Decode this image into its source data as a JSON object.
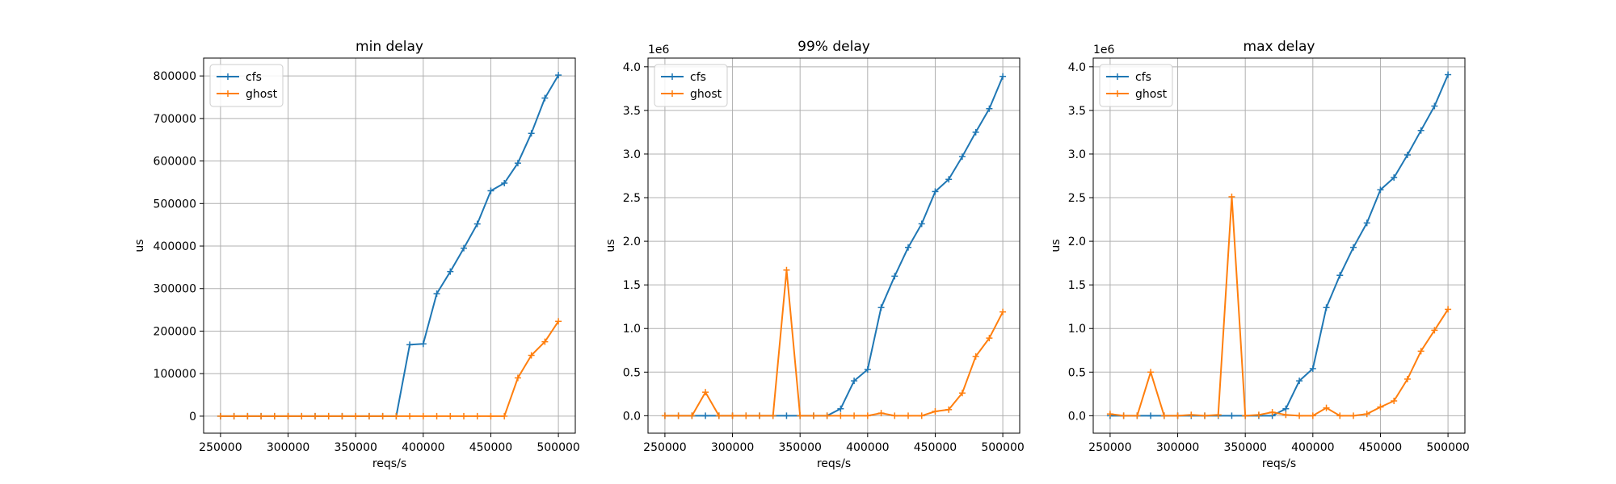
{
  "colors": {
    "cfs": "#1f77b4",
    "ghost": "#ff7f0e",
    "grid": "#b0b0b0",
    "legend_border": "#cccccc"
  },
  "chart_data": [
    {
      "type": "line",
      "title": "min delay",
      "xlabel": "reqs/s",
      "ylabel": "us",
      "offset_text": "",
      "x": [
        250000,
        260000,
        270000,
        280000,
        290000,
        300000,
        310000,
        320000,
        330000,
        340000,
        350000,
        360000,
        370000,
        380000,
        390000,
        400000,
        410000,
        420000,
        430000,
        440000,
        450000,
        460000,
        470000,
        480000,
        490000,
        500000
      ],
      "series": [
        {
          "name": "cfs",
          "values": [
            0,
            0,
            0,
            0,
            0,
            0,
            0,
            0,
            0,
            0,
            0,
            0,
            0,
            0,
            168000,
            170000,
            288000,
            340000,
            395000,
            452000,
            530000,
            548000,
            595000,
            665000,
            748000,
            802000
          ]
        },
        {
          "name": "ghost",
          "values": [
            0,
            0,
            0,
            0,
            0,
            0,
            0,
            0,
            0,
            0,
            0,
            0,
            0,
            0,
            0,
            0,
            0,
            0,
            0,
            0,
            0,
            0,
            90000,
            143000,
            175000,
            223000
          ]
        }
      ],
      "xlim": [
        237500,
        512500
      ],
      "ylim": [
        -40000,
        842000
      ],
      "xticks": [
        250000,
        300000,
        350000,
        400000,
        450000,
        500000
      ],
      "xtick_labels": [
        "250000",
        "300000",
        "350000",
        "400000",
        "450000",
        "500000"
      ],
      "yticks": [
        0,
        100000,
        200000,
        300000,
        400000,
        500000,
        600000,
        700000,
        800000
      ],
      "ytick_labels": [
        "0",
        "100000",
        "200000",
        "300000",
        "400000",
        "500000",
        "600000",
        "700000",
        "800000"
      ],
      "grid": true,
      "legend": "upper-left"
    },
    {
      "type": "line",
      "title": "99% delay",
      "xlabel": "reqs/s",
      "ylabel": "us",
      "offset_text": "1e6",
      "x": [
        250000,
        260000,
        270000,
        280000,
        290000,
        300000,
        310000,
        320000,
        330000,
        340000,
        350000,
        360000,
        370000,
        380000,
        390000,
        400000,
        410000,
        420000,
        430000,
        440000,
        450000,
        460000,
        470000,
        480000,
        490000,
        500000
      ],
      "series": [
        {
          "name": "cfs",
          "values": [
            0,
            0,
            0,
            0,
            0,
            0,
            0,
            0,
            0,
            0,
            0,
            0,
            0,
            0.08,
            0.4,
            0.53,
            1.24,
            1.6,
            1.93,
            2.2,
            2.57,
            2.71,
            2.97,
            3.25,
            3.52,
            3.89
          ]
        },
        {
          "name": "ghost",
          "values": [
            0,
            0,
            0,
            0.27,
            0,
            0,
            0,
            0,
            0,
            1.67,
            0,
            0,
            0,
            0,
            0,
            0,
            0.03,
            0,
            0,
            0,
            0.05,
            0.07,
            0.26,
            0.68,
            0.89,
            1.19
          ]
        }
      ],
      "xlim": [
        237500,
        512500
      ],
      "ylim": [
        -0.2,
        4.1
      ],
      "xticks": [
        250000,
        300000,
        350000,
        400000,
        450000,
        500000
      ],
      "xtick_labels": [
        "250000",
        "300000",
        "350000",
        "400000",
        "450000",
        "500000"
      ],
      "yticks": [
        0,
        0.5,
        1.0,
        1.5,
        2.0,
        2.5,
        3.0,
        3.5,
        4.0
      ],
      "ytick_labels": [
        "0.0",
        "0.5",
        "1.0",
        "1.5",
        "2.0",
        "2.5",
        "3.0",
        "3.5",
        "4.0"
      ],
      "grid": true,
      "legend": "upper-left"
    },
    {
      "type": "line",
      "title": "max delay",
      "xlabel": "reqs/s",
      "ylabel": "us",
      "offset_text": "1e6",
      "x": [
        250000,
        260000,
        270000,
        280000,
        290000,
        300000,
        310000,
        320000,
        330000,
        340000,
        350000,
        360000,
        370000,
        380000,
        390000,
        400000,
        410000,
        420000,
        430000,
        440000,
        450000,
        460000,
        470000,
        480000,
        490000,
        500000
      ],
      "series": [
        {
          "name": "cfs",
          "values": [
            0,
            0,
            0,
            0,
            0,
            0,
            0,
            0,
            0,
            0,
            0,
            0,
            0,
            0.08,
            0.4,
            0.54,
            1.24,
            1.61,
            1.93,
            2.21,
            2.59,
            2.73,
            2.99,
            3.27,
            3.55,
            3.91
          ]
        },
        {
          "name": "ghost",
          "values": [
            0.02,
            0,
            0,
            0.5,
            0,
            0,
            0.01,
            0,
            0.01,
            2.51,
            0,
            0.01,
            0.04,
            0.01,
            0,
            0,
            0.09,
            0,
            0,
            0.02,
            0.1,
            0.17,
            0.42,
            0.74,
            0.98,
            1.22
          ]
        }
      ],
      "xlim": [
        237500,
        512500
      ],
      "ylim": [
        -0.2,
        4.1
      ],
      "xticks": [
        250000,
        300000,
        350000,
        400000,
        450000,
        500000
      ],
      "xtick_labels": [
        "250000",
        "300000",
        "350000",
        "400000",
        "450000",
        "500000"
      ],
      "yticks": [
        0,
        0.5,
        1.0,
        1.5,
        2.0,
        2.5,
        3.0,
        3.5,
        4.0
      ],
      "ytick_labels": [
        "0.0",
        "0.5",
        "1.0",
        "1.5",
        "2.0",
        "2.5",
        "3.0",
        "3.5",
        "4.0"
      ],
      "grid": true,
      "legend": "upper-left"
    }
  ]
}
